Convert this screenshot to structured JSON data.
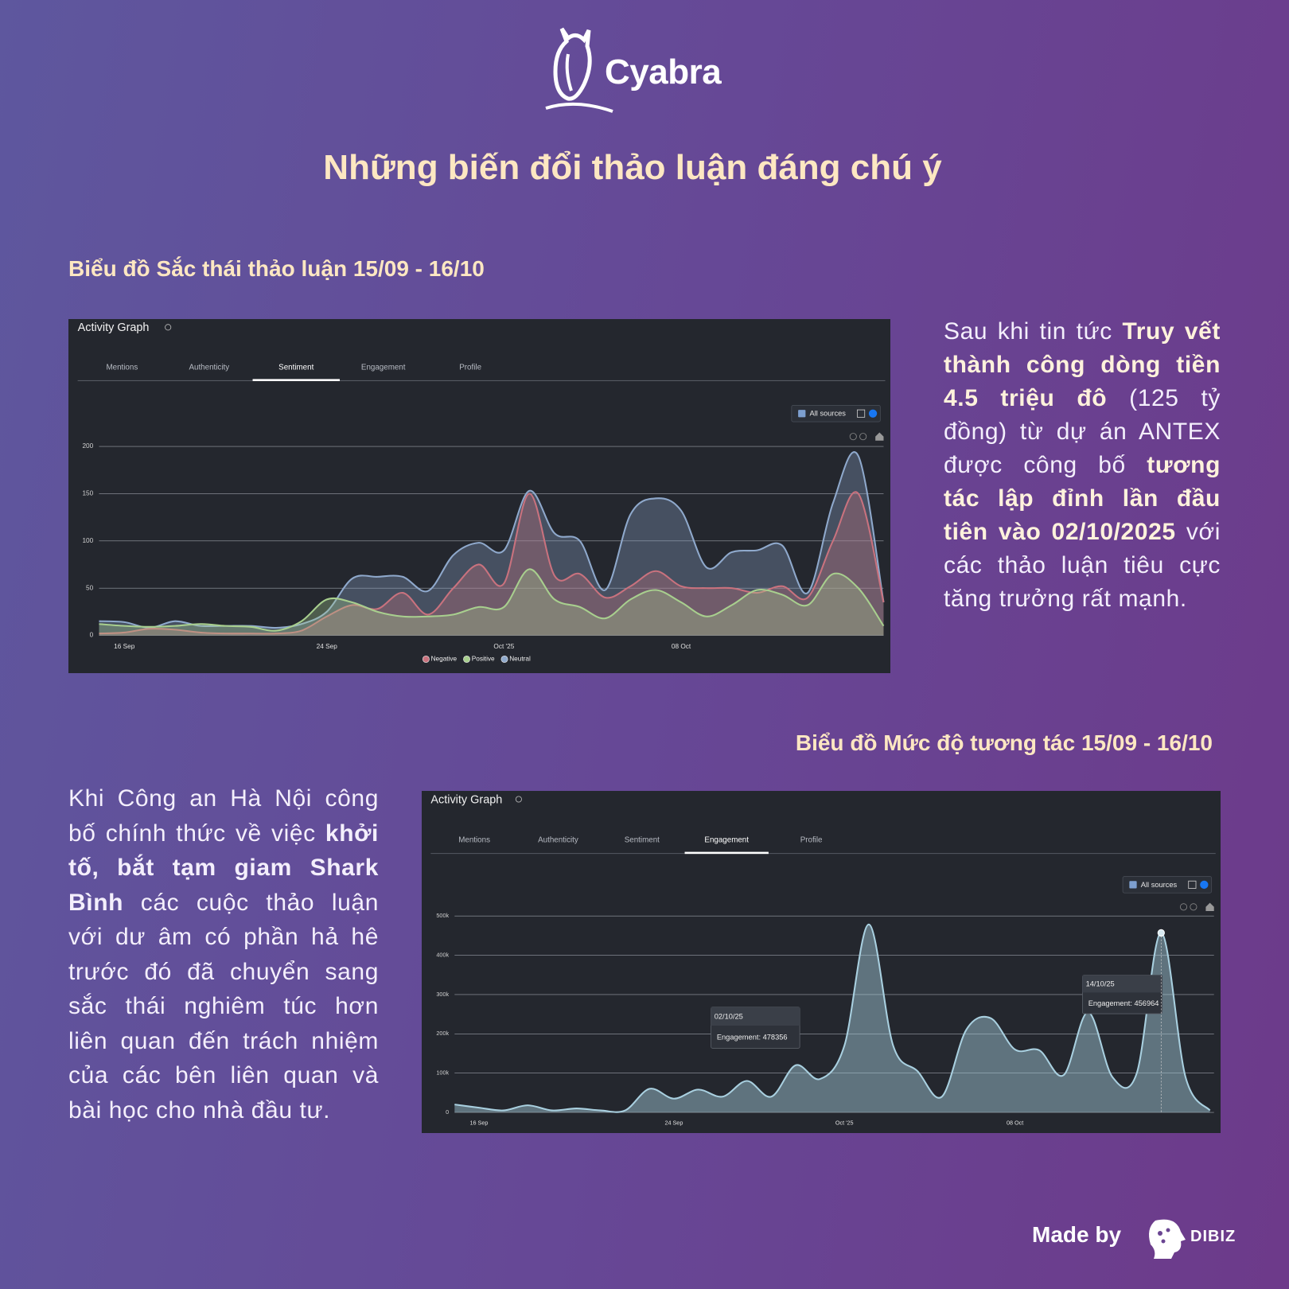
{
  "brand": "Cyabra",
  "title": "Những biến đổi thảo luận đáng chú ý",
  "sections": [
    {
      "heading": "Biểu đồ Sắc thái thảo luận 15/09 - 16/10",
      "paragraph": [
        {
          "text": "Sau khi tin tức ",
          "bold": false
        },
        {
          "text": "Truy vết thành công dòng tiền 4.5 triệu đô",
          "bold": true
        },
        {
          "text": " (125 tỷ đồng) từ dự án ANTEX được công bố ",
          "bold": false
        },
        {
          "text": "tương tác lập đỉnh lần đầu tiên vào 02/10/2025",
          "bold": true
        },
        {
          "text": " với các thảo luận tiêu cực tăng trưởng rất mạnh.",
          "bold": false
        }
      ]
    },
    {
      "heading": "Biểu đồ Mức độ tương tác 15/09 - 16/10",
      "paragraph": [
        {
          "text": "Khi Công an Hà Nội công bố chính thức về việc ",
          "bold": false
        },
        {
          "text": "khởi tố, bắt tạm giam Shark Bình",
          "bold": true
        },
        {
          "text": " các cuộc thảo luận với dư âm có phần hả hê trước đó đã chuyển sang sắc thái nghiêm túc hơn liên quan đến trách nhiệm của các bên liên quan và bài học cho nhà đầu tư.",
          "bold": false
        }
      ]
    }
  ],
  "footer": {
    "made_by": "Made by",
    "brand": "DIBIZ"
  },
  "chart_data": [
    {
      "type": "area",
      "title": "Activity Graph",
      "tabs": [
        "Mentions",
        "Authenticity",
        "Sentiment",
        "Engagement",
        "Profile"
      ],
      "active_tab": "Sentiment",
      "filter": "All sources",
      "categories": [
        null,
        "16 Sep",
        null,
        null,
        null,
        null,
        null,
        null,
        null,
        "24 Sep",
        null,
        null,
        null,
        null,
        null,
        null,
        "Oct '25",
        null,
        null,
        null,
        null,
        null,
        null,
        "08 Oct",
        null,
        null,
        null,
        null,
        null,
        null,
        null,
        null
      ],
      "series": [
        {
          "name": "Neutral",
          "color": "#8fa9cc",
          "values": [
            15,
            14,
            8,
            15,
            10,
            10,
            10,
            8,
            12,
            25,
            60,
            62,
            62,
            47,
            85,
            98,
            90,
            153,
            108,
            100,
            48,
            128,
            145,
            132,
            72,
            88,
            90,
            95,
            45,
            140,
            190,
            35
          ]
        },
        {
          "name": "Negative",
          "color": "#c9727e",
          "values": [
            2,
            3,
            7,
            6,
            3,
            2,
            2,
            2,
            5,
            20,
            32,
            28,
            45,
            22,
            50,
            75,
            55,
            150,
            63,
            65,
            40,
            52,
            68,
            52,
            50,
            50,
            45,
            52,
            40,
            100,
            150,
            35
          ]
        },
        {
          "name": "Positive",
          "color": "#a8cf8e",
          "values": [
            12,
            10,
            9,
            10,
            12,
            10,
            9,
            5,
            15,
            38,
            35,
            25,
            20,
            20,
            22,
            30,
            30,
            70,
            38,
            30,
            18,
            38,
            48,
            35,
            20,
            32,
            48,
            43,
            32,
            65,
            50,
            10
          ]
        }
      ],
      "legend_order": [
        "Negative",
        "Positive",
        "Neutral"
      ],
      "ylim": [
        0,
        200
      ],
      "yticks": [
        0,
        50,
        100,
        150,
        200
      ],
      "grid": true,
      "legend": "bottom"
    },
    {
      "type": "area",
      "title": "Activity Graph",
      "tabs": [
        "Mentions",
        "Authenticity",
        "Sentiment",
        "Engagement",
        "Profile"
      ],
      "active_tab": "Engagement",
      "filter": "All sources",
      "categories": [
        null,
        "16 Sep",
        null,
        null,
        null,
        null,
        null,
        null,
        null,
        "24 Sep",
        null,
        null,
        null,
        null,
        null,
        null,
        "Oct '25",
        null,
        null,
        null,
        null,
        null,
        null,
        "08 Oct",
        null,
        null,
        null,
        null,
        null,
        null,
        null,
        null
      ],
      "series": [
        {
          "name": "Engagement",
          "color": "#a9d0e0",
          "values": [
            20000,
            12000,
            5000,
            18000,
            5000,
            10000,
            5000,
            5000,
            60000,
            35000,
            58000,
            40000,
            80000,
            40000,
            120000,
            85000,
            170000,
            478356,
            170000,
            105000,
            40000,
            210000,
            240000,
            160000,
            158000,
            95000,
            255000,
            90000,
            100000,
            456964,
            90000,
            5000
          ]
        }
      ],
      "ylim": [
        0,
        500000
      ],
      "yticks": [
        0,
        {
          "value": 100000,
          "label": "100k"
        },
        {
          "value": 200000,
          "label": "200k"
        },
        {
          "value": 300000,
          "label": "300k"
        },
        {
          "value": 400000,
          "label": "400k"
        },
        {
          "value": 500000,
          "label": "500k"
        }
      ],
      "grid": true,
      "annotations": [
        {
          "date": "02/10/25",
          "text": "Engagement: 478356"
        },
        {
          "date": "14/10/25",
          "text": "Engagement: 456964"
        }
      ]
    }
  ]
}
